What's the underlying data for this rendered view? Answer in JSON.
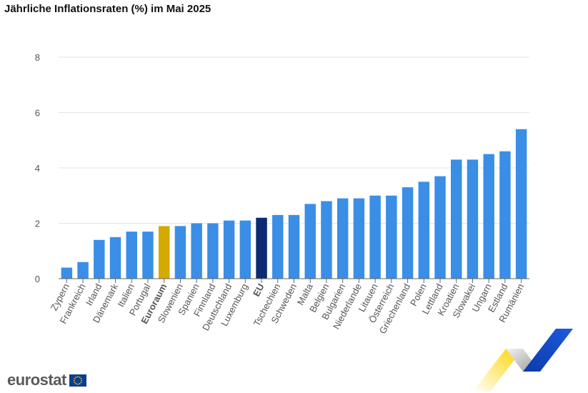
{
  "header": {
    "title": "Jährliche Inflationsraten (%) im Mai 2025"
  },
  "brand": {
    "logo_text": "eurostat"
  },
  "colors": {
    "default": "#3a8ee6",
    "euroraum": "#d4a900",
    "eu": "#0b2a70",
    "grid": "#e3e3e3"
  },
  "chart_data": {
    "type": "bar",
    "title": "Jährliche Inflationsraten (%) im Mai 2025",
    "xlabel": "",
    "ylabel": "",
    "ylim": [
      0,
      8
    ],
    "yticks": [
      0,
      2,
      4,
      6,
      8
    ],
    "grid": true,
    "legend": "none",
    "categories": [
      "Zypern",
      "Frankreich",
      "Irland",
      "Dänemark",
      "Italien",
      "Portugal",
      "Euroraum",
      "Slowenien",
      "Spanien",
      "Finnland",
      "Deutschland",
      "Luxemburg",
      "EU",
      "Tschechien",
      "Schweden",
      "Malta",
      "Belgien",
      "Bulgarien",
      "Niederlande",
      "Litauen",
      "Österreich",
      "Griechenland",
      "Polen",
      "Lettland",
      "Kroatien",
      "Slowakei",
      "Ungarn",
      "Estland",
      "Rumänien"
    ],
    "values": [
      0.4,
      0.6,
      1.4,
      1.5,
      1.7,
      1.7,
      1.9,
      1.9,
      2.0,
      2.0,
      2.1,
      2.1,
      2.2,
      2.3,
      2.3,
      2.7,
      2.8,
      2.9,
      2.9,
      3.0,
      3.0,
      3.3,
      3.5,
      3.7,
      4.3,
      4.3,
      4.5,
      4.6,
      5.4
    ],
    "highlight": {
      "Euroraum": "euroraum",
      "EU": "eu"
    }
  }
}
